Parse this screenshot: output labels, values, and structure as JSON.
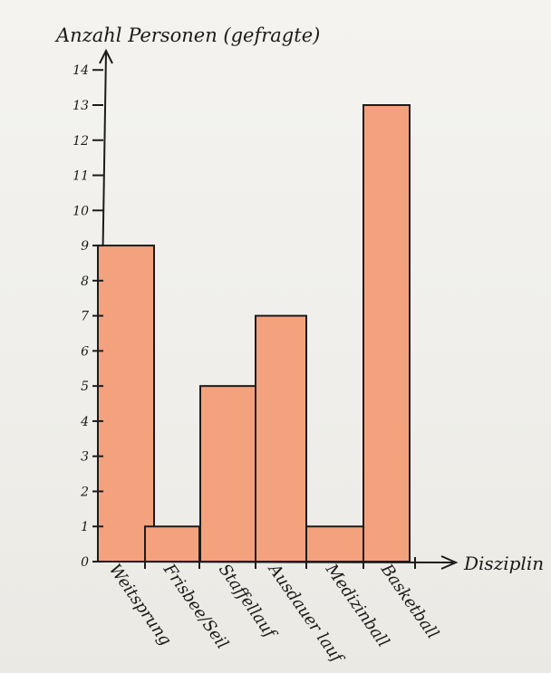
{
  "chart_data": {
    "type": "bar",
    "ylabel": "Anzahl Personen (gefragte)",
    "xlabel": "Disziplin",
    "categories": [
      "Weitsprung",
      "Frisbee/Seil",
      "Staffellauf",
      "Ausdauer lauf",
      "Medizinball",
      "Basketball"
    ],
    "values": [
      9,
      1,
      5,
      7,
      1,
      13
    ],
    "ylim": [
      0,
      14
    ],
    "yticks": [
      "0",
      "1",
      "2",
      "3",
      "4",
      "5",
      "6",
      "7",
      "8",
      "9",
      "10",
      "11",
      "12",
      "13",
      "14"
    ],
    "bar_color": "#f4a27e",
    "bar_stroke": "#1c1c1c",
    "grid": false,
    "legend": "none"
  }
}
